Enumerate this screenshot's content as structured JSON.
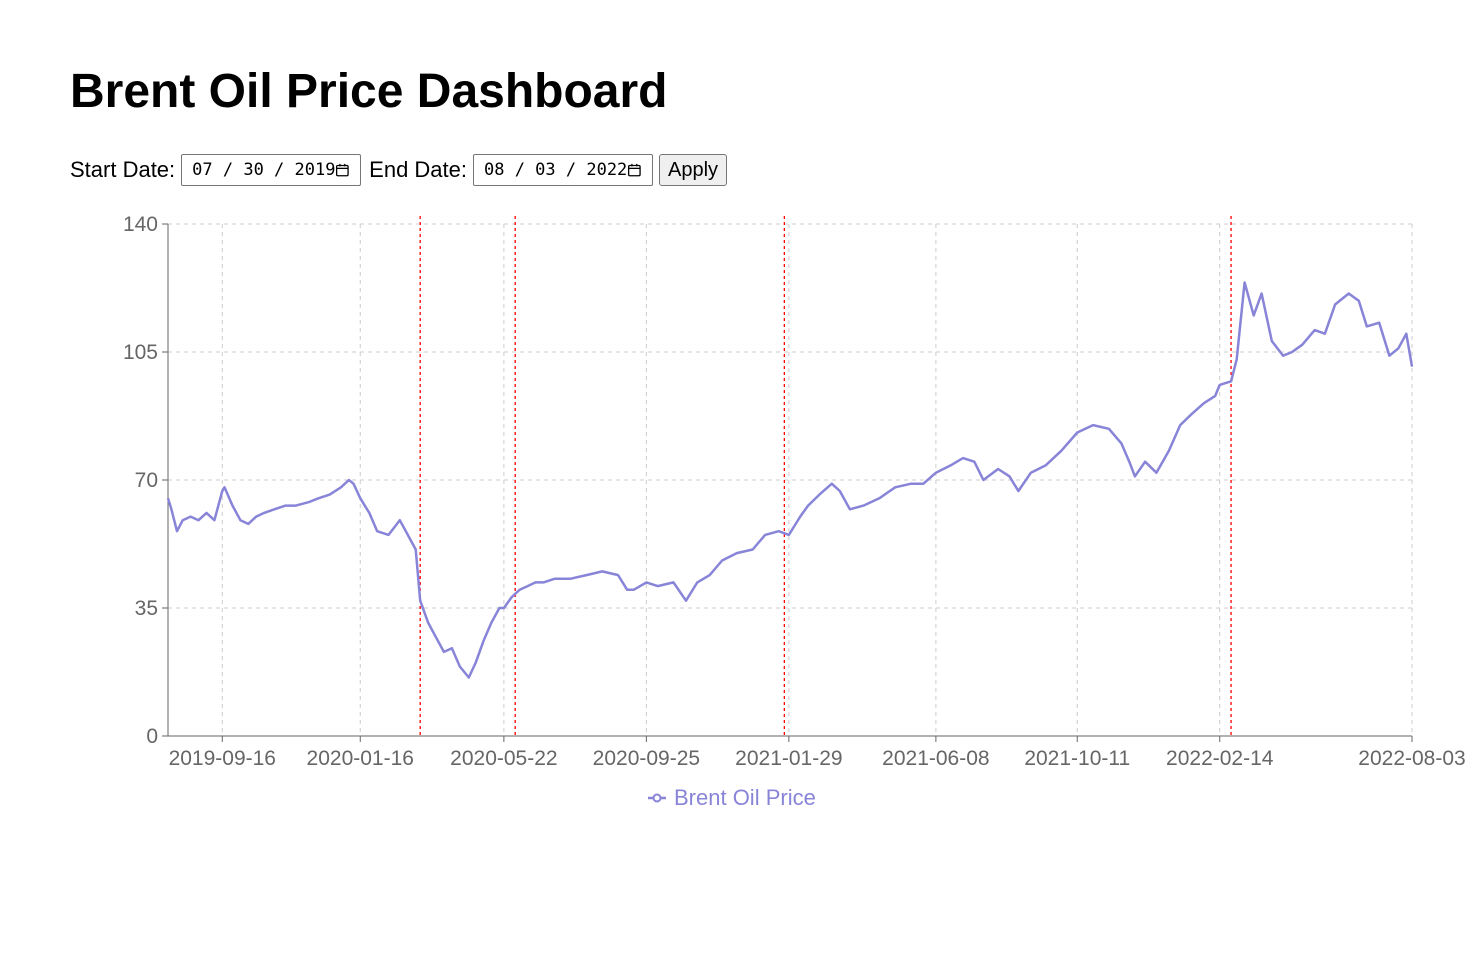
{
  "header": {
    "title": "Brent Oil Price Dashboard"
  },
  "filters": {
    "start_label": "Start Date:",
    "start_value": "07 / 30 / 2019",
    "end_label": "End Date:",
    "end_value": "08 / 03 / 2022",
    "apply_label": "Apply",
    "calendar_icon": "calendar-icon"
  },
  "chart_data": {
    "type": "line",
    "title": "",
    "xlabel": "",
    "ylabel": "",
    "ylim": [
      0,
      140
    ],
    "yticks": [
      0,
      35,
      70,
      105,
      140
    ],
    "xticks": [
      "2019-09-16",
      "2020-01-16",
      "2020-05-22",
      "2020-09-25",
      "2021-01-29",
      "2021-06-08",
      "2021-10-11",
      "2022-02-14",
      "2022-08-03"
    ],
    "xlim": [
      "2019-07-30",
      "2022-08-03"
    ],
    "grid": true,
    "legend_position": "bottom",
    "colors": {
      "series": "#8884d8",
      "event": "#ff0000",
      "grid": "#cccccc",
      "axis": "#666666"
    },
    "event_lines": [
      "2020-03-09",
      "2020-06-01",
      "2021-01-25",
      "2022-02-24"
    ],
    "series": [
      {
        "name": "Brent Oil Price",
        "x": [
          "2019-07-30",
          "2019-08-02",
          "2019-08-07",
          "2019-08-12",
          "2019-08-19",
          "2019-08-26",
          "2019-09-02",
          "2019-09-09",
          "2019-09-16",
          "2019-09-18",
          "2019-09-25",
          "2019-10-02",
          "2019-10-09",
          "2019-10-16",
          "2019-10-23",
          "2019-11-01",
          "2019-11-11",
          "2019-11-20",
          "2019-12-02",
          "2019-12-10",
          "2019-12-20",
          "2019-12-30",
          "2020-01-06",
          "2020-01-10",
          "2020-01-16",
          "2020-01-24",
          "2020-01-31",
          "2020-02-10",
          "2020-02-20",
          "2020-02-27",
          "2020-03-05",
          "2020-03-09",
          "2020-03-16",
          "2020-03-23",
          "2020-03-30",
          "2020-04-06",
          "2020-04-13",
          "2020-04-21",
          "2020-04-27",
          "2020-05-04",
          "2020-05-11",
          "2020-05-18",
          "2020-05-22",
          "2020-05-29",
          "2020-06-05",
          "2020-06-12",
          "2020-06-19",
          "2020-06-26",
          "2020-07-06",
          "2020-07-20",
          "2020-08-03",
          "2020-08-17",
          "2020-08-31",
          "2020-09-08",
          "2020-09-14",
          "2020-09-25",
          "2020-10-05",
          "2020-10-19",
          "2020-10-30",
          "2020-11-09",
          "2020-11-20",
          "2020-12-01",
          "2020-12-14",
          "2020-12-28",
          "2021-01-08",
          "2021-01-20",
          "2021-01-29",
          "2021-02-08",
          "2021-02-15",
          "2021-02-25",
          "2021-03-08",
          "2021-03-15",
          "2021-03-24",
          "2021-04-05",
          "2021-04-19",
          "2021-05-03",
          "2021-05-17",
          "2021-05-28",
          "2021-06-08",
          "2021-06-21",
          "2021-07-02",
          "2021-07-12",
          "2021-07-20",
          "2021-08-02",
          "2021-08-12",
          "2021-08-20",
          "2021-08-31",
          "2021-09-13",
          "2021-09-27",
          "2021-10-11",
          "2021-10-25",
          "2021-11-08",
          "2021-11-19",
          "2021-11-26",
          "2021-12-01",
          "2021-12-10",
          "2021-12-20",
          "2021-12-31",
          "2022-01-10",
          "2022-01-20",
          "2022-01-31",
          "2022-02-10",
          "2022-02-14",
          "2022-02-24",
          "2022-03-01",
          "2022-03-08",
          "2022-03-16",
          "2022-03-23",
          "2022-04-01",
          "2022-04-11",
          "2022-04-19",
          "2022-04-28",
          "2022-05-09",
          "2022-05-18",
          "2022-05-27",
          "2022-06-08",
          "2022-06-17",
          "2022-06-24",
          "2022-07-05",
          "2022-07-14",
          "2022-07-22",
          "2022-07-29",
          "2022-08-03"
        ],
        "values": [
          65,
          62,
          56,
          59,
          60,
          59,
          61,
          59,
          67,
          68,
          63,
          59,
          58,
          60,
          61,
          62,
          63,
          63,
          64,
          65,
          66,
          68,
          70,
          69,
          65,
          61,
          56,
          55,
          59,
          55,
          51,
          37,
          31,
          27,
          23,
          24,
          19,
          16,
          20,
          26,
          31,
          35,
          35,
          38,
          40,
          41,
          42,
          42,
          43,
          43,
          44,
          45,
          44,
          40,
          40,
          42,
          41,
          42,
          37,
          42,
          44,
          48,
          50,
          51,
          55,
          56,
          55,
          60,
          63,
          66,
          69,
          67,
          62,
          63,
          65,
          68,
          69,
          69,
          72,
          74,
          76,
          75,
          70,
          73,
          71,
          67,
          72,
          74,
          78,
          83,
          85,
          84,
          80,
          75,
          71,
          75,
          72,
          78,
          85,
          88,
          91,
          93,
          96,
          97,
          103,
          124,
          115,
          121,
          108,
          104,
          105,
          107,
          111,
          110,
          118,
          121,
          119,
          112,
          113,
          104,
          106,
          110,
          101
        ]
      }
    ]
  }
}
